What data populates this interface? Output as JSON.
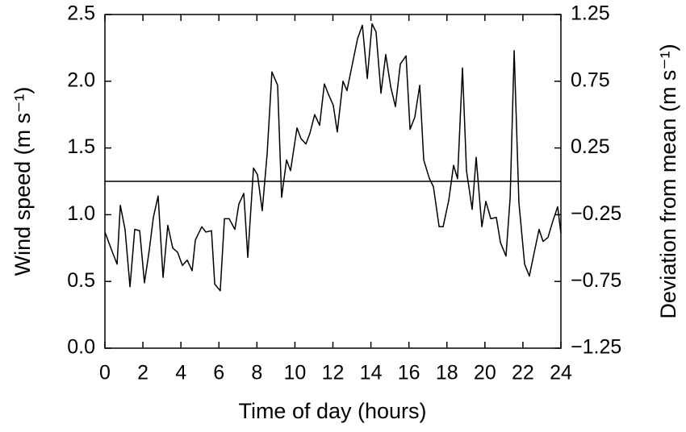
{
  "chart_data": {
    "type": "line",
    "x_label": "Time of day (hours)",
    "y_label": "Wind speed (m s⁻¹)",
    "y2_label": "Deviation from mean (m s⁻¹)",
    "xlim": [
      0,
      24
    ],
    "xticks": [
      0,
      2,
      4,
      6,
      8,
      10,
      12,
      14,
      16,
      18,
      20,
      22,
      24
    ],
    "ylim": [
      0,
      2.5
    ],
    "yticks": [
      {
        "value": 0,
        "label": "0.0"
      },
      0.5,
      {
        "value": 1,
        "label": "1.0"
      },
      1.5,
      {
        "value": 2,
        "label": "2.0"
      },
      2.5
    ],
    "y2lim": [
      -1.25,
      1.25
    ],
    "y2ticks": [
      {
        "value": -1.25,
        "label": "−1.25"
      },
      {
        "value": -0.75,
        "label": "−0.75"
      },
      {
        "value": -0.25,
        "label": "−0.25"
      },
      0.25,
      0.75,
      1.25
    ],
    "hline": {
      "axis": "y2",
      "value": 0
    },
    "series": [
      {
        "color": "#000000",
        "x": [
          0,
          0.34,
          0.64,
          0.81,
          1.06,
          1.32,
          1.57,
          1.83,
          2.08,
          2.34,
          2.55,
          2.8,
          3.06,
          3.31,
          3.57,
          3.82,
          4.08,
          4.33,
          4.59,
          4.76,
          5.1,
          5.31,
          5.61,
          5.78,
          6.07,
          6.29,
          6.54,
          6.84,
          7.05,
          7.31,
          7.52,
          7.82,
          8.03,
          8.28,
          8.54,
          8.79,
          9.09,
          9.3,
          9.56,
          9.77,
          10.11,
          10.32,
          10.58,
          10.79,
          11.04,
          11.3,
          11.55,
          11.77,
          12.02,
          12.23,
          12.53,
          12.74,
          13.04,
          13.3,
          13.55,
          13.81,
          14.06,
          14.27,
          14.53,
          14.78,
          15.04,
          15.29,
          15.55,
          15.85,
          16.06,
          16.31,
          16.57,
          16.78,
          17.08,
          17.29,
          17.59,
          17.8,
          18.1,
          18.35,
          18.56,
          18.82,
          19.03,
          19.33,
          19.54,
          19.84,
          20.05,
          20.31,
          20.6,
          20.82,
          21.11,
          21.33,
          21.54,
          21.79,
          22.09,
          22.34,
          22.6,
          22.85,
          23.06,
          23.32,
          23.57,
          23.83,
          24
        ],
        "values": [
          0.87,
          0.74,
          0.63,
          1.07,
          0.89,
          0.46,
          0.89,
          0.88,
          0.49,
          0.74,
          0.98,
          1.14,
          0.53,
          0.92,
          0.75,
          0.72,
          0.62,
          0.66,
          0.58,
          0.81,
          0.91,
          0.87,
          0.88,
          0.48,
          0.43,
          0.97,
          0.97,
          0.89,
          1.08,
          1.16,
          0.68,
          1.35,
          1.3,
          1.03,
          1.46,
          2.07,
          1.97,
          1.13,
          1.41,
          1.33,
          1.65,
          1.57,
          1.53,
          1.61,
          1.75,
          1.67,
          1.98,
          1.9,
          1.82,
          1.62,
          2,
          1.93,
          2.14,
          2.32,
          2.42,
          2.02,
          2.43,
          2.37,
          1.91,
          2.2,
          1.96,
          1.81,
          2.13,
          2.19,
          1.64,
          1.73,
          1.97,
          1.41,
          1.27,
          1.21,
          0.91,
          0.91,
          1.11,
          1.37,
          1.27,
          2.1,
          1.33,
          1.04,
          1.43,
          0.91,
          1.1,
          0.97,
          0.98,
          0.79,
          0.69,
          1.13,
          2.23,
          1.09,
          0.63,
          0.54,
          0.72,
          0.89,
          0.8,
          0.83,
          0.95,
          1.06,
          0.86
        ]
      }
    ]
  }
}
